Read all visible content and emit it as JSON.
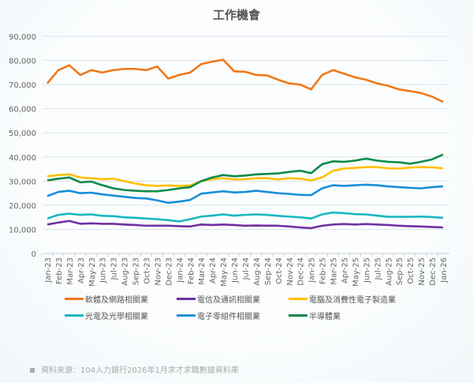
{
  "chart_data": {
    "type": "line",
    "title": "工作機會",
    "ylim": [
      0,
      90000
    ],
    "yticks": [
      0,
      10000,
      20000,
      30000,
      40000,
      50000,
      60000,
      70000,
      80000,
      90000
    ],
    "ytick_labels": [
      "0",
      "10,000",
      "20,000",
      "30,000",
      "40,000",
      "50,000",
      "60,000",
      "70,000",
      "80,000",
      "90,000"
    ],
    "grid": true,
    "legend": "bottom",
    "categories": [
      "Jan-23",
      "Feb-23",
      "Mar-23",
      "Apr-23",
      "May-23",
      "Jun-23",
      "Jul-23",
      "Aug-23",
      "Sep-23",
      "Oct-23",
      "Nov-23",
      "Dec-23",
      "Jan-24",
      "Feb-24",
      "Mar-24",
      "Apr-24",
      "May-24",
      "Jun-24",
      "Jul-24",
      "Aug-24",
      "Sep-24",
      "Oct-24",
      "Nov-24",
      "Dec-24",
      "Jan-25",
      "Feb-25",
      "Mar-25",
      "Apr-25",
      "May-25",
      "Jun-25",
      "Jul-25",
      "Aug-25",
      "Sep-25",
      "Oct-25",
      "Nov-25",
      "Dec-25",
      "Jan-26"
    ],
    "series": [
      {
        "name": "軟體及網路相關業",
        "color": "#f07818",
        "values": [
          70500,
          76000,
          78000,
          74000,
          76000,
          75000,
          76000,
          76500,
          76500,
          76000,
          77500,
          72500,
          74000,
          75000,
          78500,
          79500,
          80300,
          75500,
          75300,
          74000,
          73800,
          72000,
          70500,
          70000,
          68000,
          74000,
          76000,
          74500,
          73000,
          72000,
          70500,
          69500,
          68000,
          67300,
          66500,
          65000,
          62800
        ]
      },
      {
        "name": "電信及通訊相關業",
        "color": "#7030a0",
        "values": [
          12000,
          12800,
          13500,
          12300,
          12500,
          12300,
          12300,
          12000,
          11800,
          11500,
          11500,
          11500,
          11300,
          11200,
          12000,
          11800,
          12000,
          11800,
          11500,
          11600,
          11500,
          11500,
          11200,
          10800,
          10500,
          11500,
          12000,
          12200,
          12000,
          12200,
          12000,
          11800,
          11500,
          11300,
          11200,
          11000,
          10800
        ]
      },
      {
        "name": "電腦及消費性電子製造業",
        "color": "#ffc000",
        "values": [
          32000,
          32500,
          32800,
          31500,
          31200,
          30800,
          31000,
          30000,
          29000,
          28300,
          28000,
          28200,
          28000,
          28200,
          30000,
          30800,
          31200,
          30700,
          30800,
          31200,
          31200,
          30700,
          31200,
          31000,
          30300,
          31500,
          34300,
          35200,
          35500,
          35800,
          35800,
          35300,
          35200,
          35600,
          35800,
          35700,
          35300
        ]
      },
      {
        "name": "光電及光學相關業",
        "color": "#17b8c0",
        "values": [
          14500,
          16000,
          16500,
          16000,
          16200,
          15600,
          15500,
          15000,
          14800,
          14500,
          14200,
          13800,
          13300,
          14200,
          15300,
          15700,
          16200,
          15700,
          16000,
          16200,
          16000,
          15600,
          15300,
          15000,
          14500,
          16200,
          17000,
          16700,
          16300,
          16200,
          15700,
          15200,
          15200,
          15200,
          15300,
          15100,
          14800
        ]
      },
      {
        "name": "電子零組件相關業",
        "color": "#1a8fd8",
        "values": [
          23800,
          25500,
          26000,
          25000,
          25200,
          24500,
          24000,
          23500,
          23000,
          22800,
          22000,
          21000,
          21500,
          22200,
          24800,
          25300,
          25800,
          25300,
          25500,
          26000,
          25500,
          25000,
          24700,
          24300,
          24200,
          27000,
          28300,
          28000,
          28300,
          28500,
          28300,
          27800,
          27500,
          27200,
          27000,
          27500,
          27800
        ]
      },
      {
        "name": "半導體業",
        "color": "#0a8a4a",
        "values": [
          30300,
          31000,
          31500,
          29500,
          29800,
          28300,
          27000,
          26300,
          26000,
          25800,
          25800,
          26300,
          27000,
          27500,
          30000,
          31500,
          32500,
          32000,
          32300,
          32800,
          33000,
          33200,
          33800,
          34300,
          33300,
          37000,
          38200,
          38000,
          38500,
          39300,
          38500,
          38000,
          37800,
          37200,
          38000,
          39000,
          41000
        ]
      }
    ]
  },
  "source": "資料來源：104人力銀行2026年1月求才求職數據資料庫"
}
